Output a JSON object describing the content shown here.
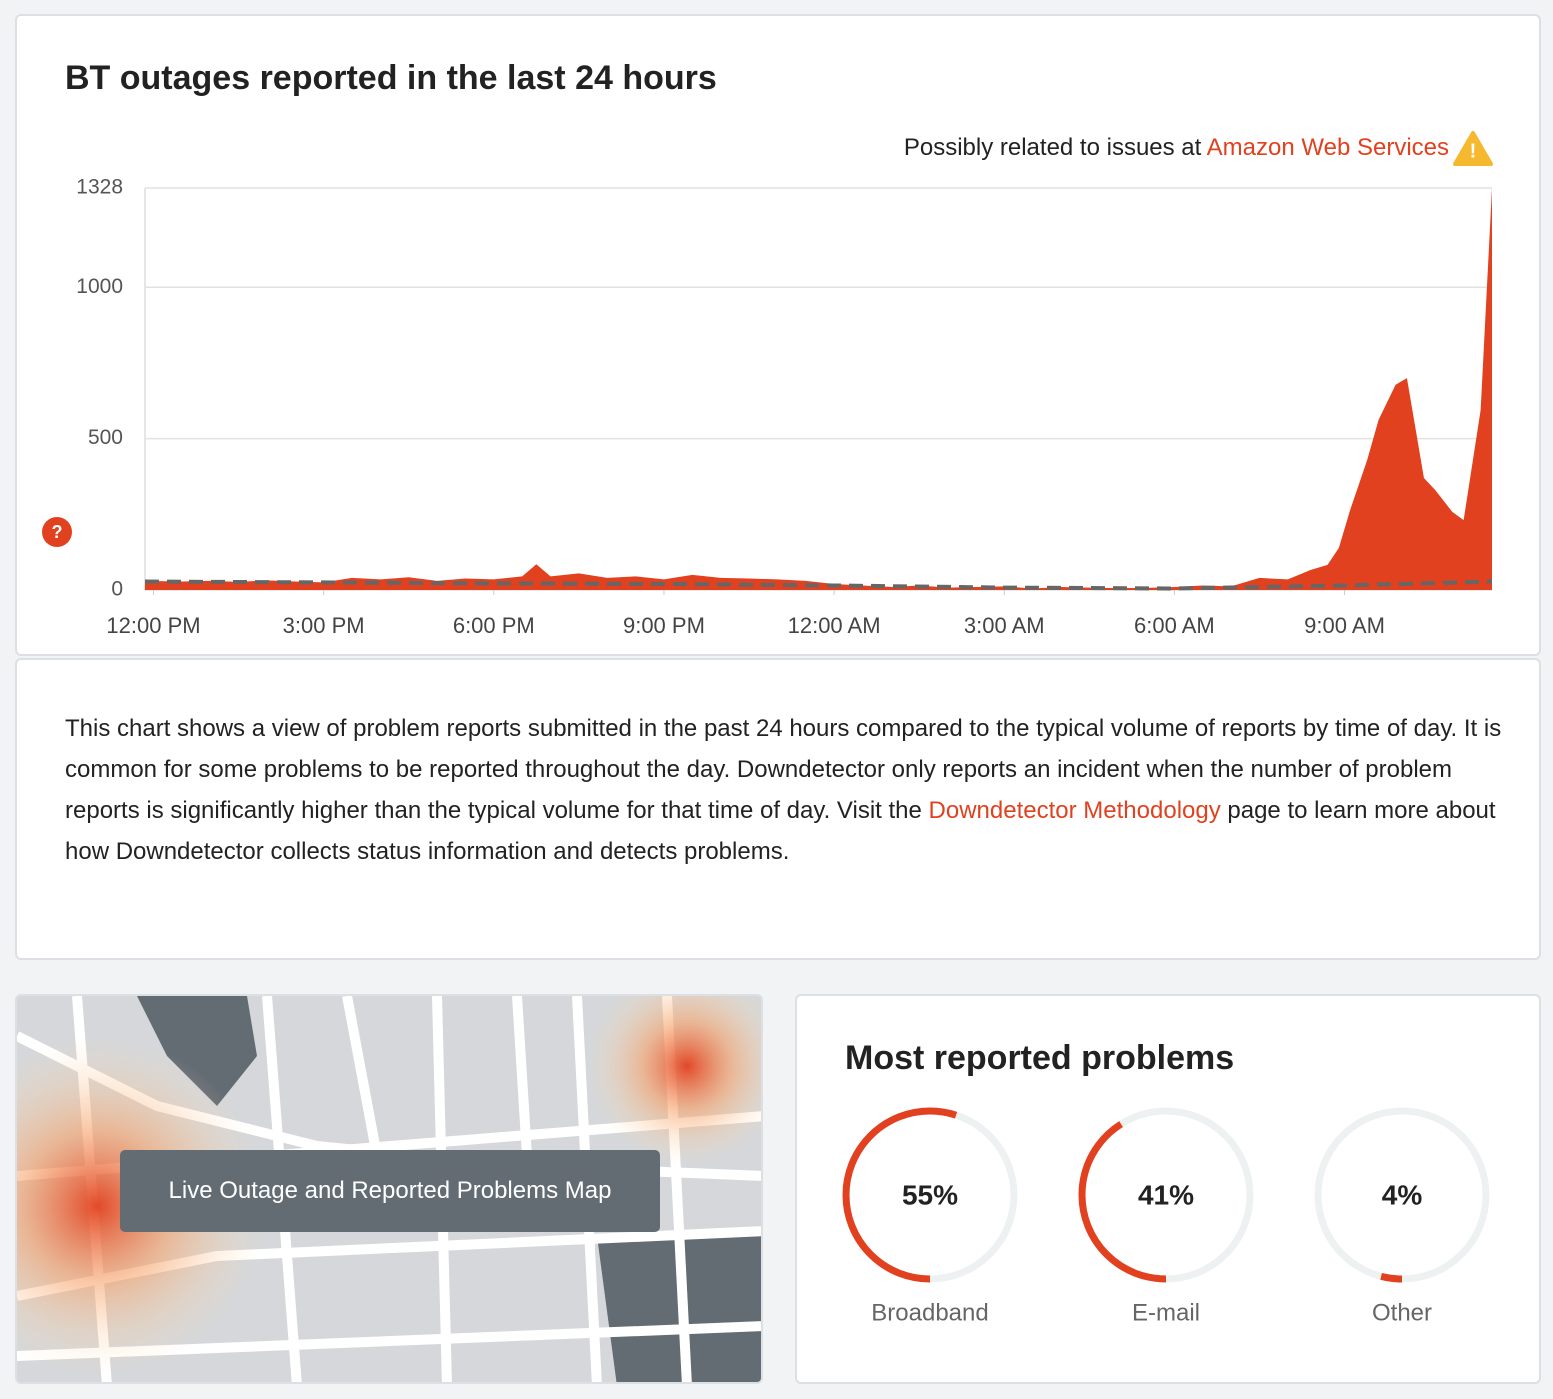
{
  "chart_data": [
    {
      "type": "area",
      "title": "BT outages reported in the last 24 hours",
      "xlim": [
        -0.15,
        23.6
      ],
      "xticks": [
        {
          "value": 0,
          "label": "12:00 PM"
        },
        {
          "value": 3,
          "label": "3:00 PM"
        },
        {
          "value": 6,
          "label": "6:00 PM"
        },
        {
          "value": 9,
          "label": "9:00 PM"
        },
        {
          "value": 12,
          "label": "12:00 AM"
        },
        {
          "value": 15,
          "label": "3:00 AM"
        },
        {
          "value": 18,
          "label": "6:00 AM"
        },
        {
          "value": 21,
          "label": "9:00 AM"
        }
      ],
      "ylim": [
        0,
        1328
      ],
      "yticks": [
        0,
        500,
        1000,
        1328
      ],
      "grid": true,
      "series": [
        {
          "color": "#e2411f",
          "x": [
            -0.15,
            0.5,
            1,
            1.5,
            2,
            2.5,
            3,
            3.5,
            4,
            4.5,
            5,
            5.5,
            6,
            6.5,
            6.75,
            7,
            7.5,
            8,
            8.5,
            9,
            9.5,
            10,
            10.5,
            11,
            11.5,
            12,
            12.5,
            13,
            13.5,
            14,
            14.5,
            15,
            15.5,
            16,
            16.5,
            17,
            17.5,
            18,
            18.5,
            19,
            19.5,
            20,
            20.4,
            20.7,
            20.9,
            21.1,
            21.4,
            21.6,
            21.9,
            22.1,
            22.4,
            22.6,
            22.9,
            23.1,
            23.4,
            23.6
          ],
          "values": [
            30,
            28,
            30,
            27,
            32,
            28,
            25,
            40,
            35,
            42,
            30,
            38,
            35,
            45,
            85,
            45,
            55,
            40,
            45,
            35,
            50,
            40,
            38,
            35,
            30,
            20,
            15,
            10,
            15,
            8,
            10,
            12,
            5,
            10,
            8,
            6,
            7,
            10,
            15,
            12,
            40,
            35,
            66,
            83,
            139,
            265,
            430,
            562,
            678,
            700,
            370,
            330,
            258,
            231,
            595,
            1328
          ]
        },
        {
          "color": "#666666",
          "dashed": true,
          "x": [
            -0.15,
            3,
            6,
            9,
            12,
            15,
            18,
            21,
            23.6
          ],
          "values": [
            28,
            25,
            22,
            20,
            15,
            8,
            5,
            15,
            28
          ]
        }
      ]
    },
    {
      "type": "donut",
      "title": "Most reported problems",
      "categories": [
        "Broadband",
        "E-mail",
        "Other"
      ],
      "values": [
        55,
        41,
        4
      ],
      "value_labels": [
        "55%",
        "41%",
        "4%"
      ],
      "color": "#e2411f"
    }
  ],
  "warning": {
    "text": "Possibly related to issues at",
    "link": "Amazon Web Services"
  },
  "description": {
    "before": "This chart shows a view of problem reports submitted in the past 24 hours compared to the typical volume of reports by time of day. It is common for some problems to be reported throughout the day. Downdetector only reports an incident when the number of problem reports is significantly higher than the typical volume for that time of day. Visit the",
    "link": "Downdetector Methodology",
    "after": "page to learn more about how Downdetector collects status information and detects problems."
  },
  "map": {
    "button": "Live Outage and Reported Problems Map"
  }
}
